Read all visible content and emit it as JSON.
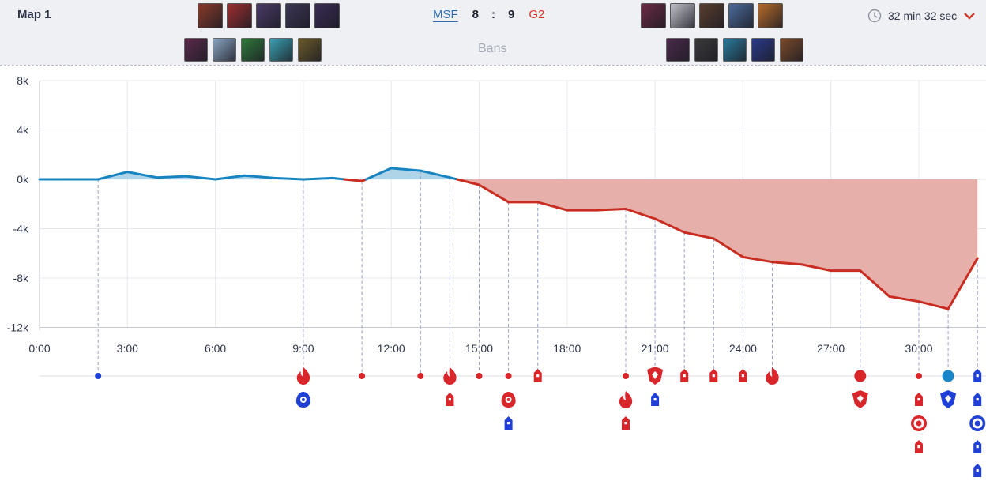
{
  "header": {
    "map_title": "Map 1",
    "duration": "32 min 32 sec",
    "bans_label": "Bans",
    "blue_team": {
      "name": "MSF",
      "score": "8",
      "color": "#2f6fb5"
    },
    "red_team": {
      "name": "G2",
      "score": "9",
      "color": "#d33a2c"
    },
    "score_separator": ":",
    "blue_picks": [
      "#8a3a2a",
      "#9c2f2f",
      "#4a3a66",
      "#3b3654",
      "#3a2c55"
    ],
    "red_picks": [
      "#6a2a44",
      "#bfc0c8",
      "#5a3e2e",
      "#4a6a9a",
      "#b46a2a"
    ],
    "blue_bans": [
      "#5a2a4a",
      "#8aa4c0",
      "#2f7a3a",
      "#3aa0b0",
      "#6a5a2a"
    ],
    "red_bans": [
      "#4a2a4a",
      "#3b3a3a",
      "#2a7a9a",
      "#2a3a8a",
      "#7a4a2a"
    ]
  },
  "chart_data": {
    "type": "area",
    "title": "",
    "xlabel": "",
    "ylabel": "",
    "x_ticks": [
      "0:00",
      "3:00",
      "6:00",
      "9:00",
      "12:00",
      "15:00",
      "18:00",
      "21:00",
      "24:00",
      "27:00",
      "30:00"
    ],
    "y_ticks": [
      "8k",
      "4k",
      "0k",
      "-4k",
      "-8k",
      "-12k"
    ],
    "xlim": [
      0,
      32.5
    ],
    "ylim": [
      -12000,
      8000
    ],
    "grid": true,
    "series": [
      {
        "x": [
          0,
          1,
          2,
          3,
          4,
          5,
          6,
          7,
          8,
          9,
          10,
          11,
          12,
          13,
          14,
          15,
          16,
          17,
          18,
          19,
          20,
          21,
          22,
          23,
          24,
          25,
          26,
          27,
          28,
          29,
          30,
          31,
          32
        ],
        "values": [
          0,
          0,
          0,
          600,
          150,
          250,
          0,
          300,
          100,
          0,
          100,
          -150,
          900,
          700,
          150,
          -450,
          -1850,
          -1850,
          -2500,
          -2500,
          -2400,
          -3200,
          -4300,
          -4800,
          -6300,
          -6700,
          -6900,
          -7400,
          -7400,
          -9500,
          -9900,
          -10500,
          -6400
        ]
      }
    ],
    "event_colors": {
      "blue": "#1f3fd6",
      "red": "#d8262b",
      "blue_dot": "#1a86c7"
    },
    "events": [
      {
        "time": 2,
        "team": "blue",
        "kind": "kill"
      },
      {
        "time": 9,
        "team": "red",
        "kind": "dragon"
      },
      {
        "time": 9,
        "team": "blue",
        "kind": "herald"
      },
      {
        "time": 11,
        "team": "red",
        "kind": "kill"
      },
      {
        "time": 13,
        "team": "red",
        "kind": "kill"
      },
      {
        "time": 14,
        "team": "red",
        "kind": "dragon"
      },
      {
        "time": 14,
        "team": "red",
        "kind": "tower"
      },
      {
        "time": 15,
        "team": "red",
        "kind": "kill"
      },
      {
        "time": 16,
        "team": "red",
        "kind": "kill"
      },
      {
        "time": 16,
        "team": "red",
        "kind": "herald"
      },
      {
        "time": 16,
        "team": "blue",
        "kind": "tower"
      },
      {
        "time": 17,
        "team": "red",
        "kind": "tower"
      },
      {
        "time": 20,
        "team": "red",
        "kind": "kill"
      },
      {
        "time": 20,
        "team": "red",
        "kind": "dragon"
      },
      {
        "time": 20,
        "team": "red",
        "kind": "tower"
      },
      {
        "time": 21,
        "team": "red",
        "kind": "baron"
      },
      {
        "time": 21,
        "team": "blue",
        "kind": "tower"
      },
      {
        "time": 22,
        "team": "red",
        "kind": "tower"
      },
      {
        "time": 23,
        "team": "red",
        "kind": "tower"
      },
      {
        "time": 24,
        "team": "red",
        "kind": "tower"
      },
      {
        "time": 25,
        "team": "red",
        "kind": "dragon"
      },
      {
        "time": 28,
        "team": "red",
        "kind": "big-kill"
      },
      {
        "time": 28,
        "team": "red",
        "kind": "baron"
      },
      {
        "time": 30,
        "team": "red",
        "kind": "kill"
      },
      {
        "time": 30,
        "team": "red",
        "kind": "tower"
      },
      {
        "time": 30,
        "team": "red",
        "kind": "inhibitor"
      },
      {
        "time": 30,
        "team": "red",
        "kind": "tower"
      },
      {
        "time": 31,
        "team": "blue_dot",
        "kind": "big-kill"
      },
      {
        "time": 31,
        "team": "blue",
        "kind": "baron"
      },
      {
        "time": 32,
        "team": "blue",
        "kind": "tower"
      },
      {
        "time": 32,
        "team": "blue",
        "kind": "tower"
      },
      {
        "time": 32,
        "team": "blue",
        "kind": "inhibitor"
      },
      {
        "time": 32,
        "team": "blue",
        "kind": "tower"
      },
      {
        "time": 32,
        "team": "blue",
        "kind": "tower"
      }
    ]
  }
}
